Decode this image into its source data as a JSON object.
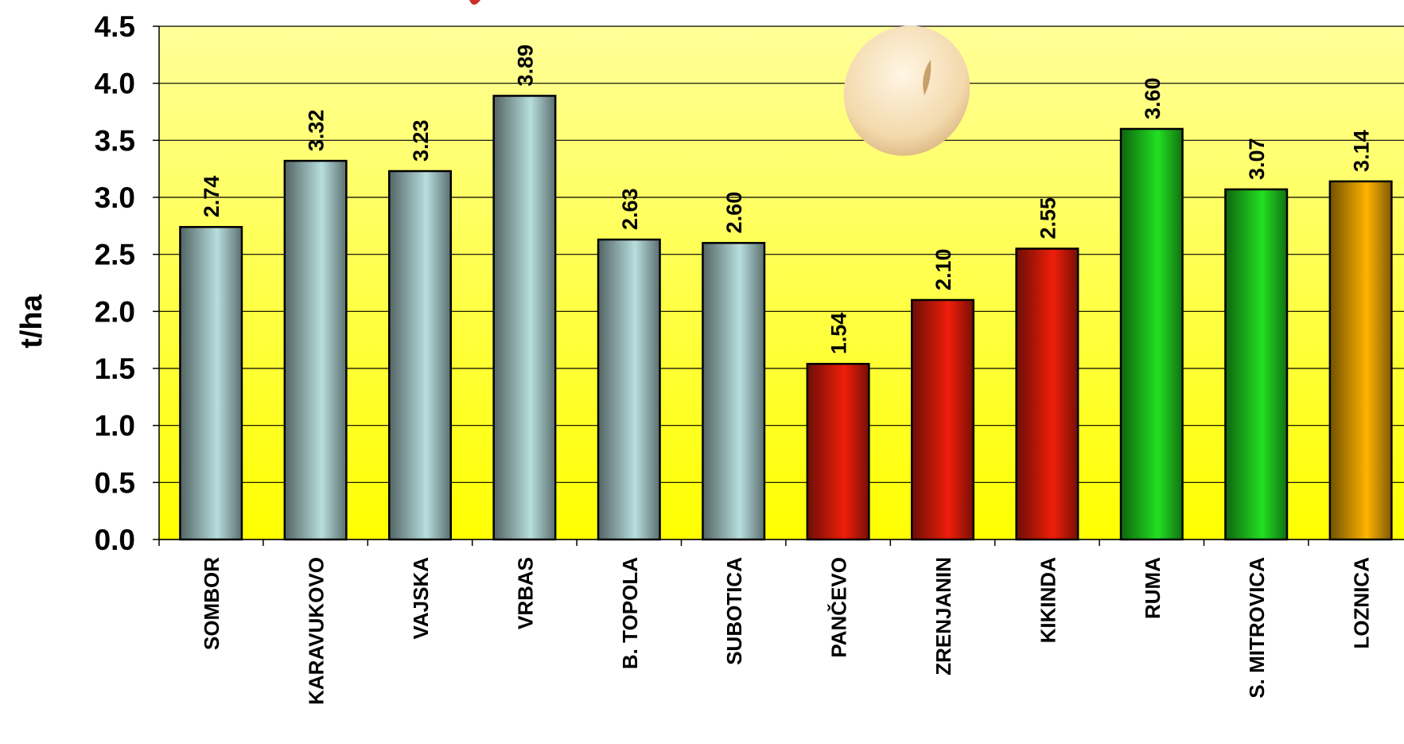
{
  "chart_data": {
    "type": "bar",
    "y_label": "t/ha",
    "categories": [
      "SOMBOR",
      "KARAVUKOVO",
      "VAJSKA",
      "VRBAS",
      "B. TOPOLA",
      "SUBOTICA",
      "PANČEVO",
      "ZRENJANIN",
      "KIKINDA",
      "RUMA",
      "S. MITROVICA",
      "LOZNICA"
    ],
    "values": [
      2.74,
      3.32,
      3.23,
      3.89,
      2.63,
      2.6,
      1.54,
      2.1,
      2.55,
      3.6,
      3.07,
      3.14
    ],
    "value_labels": [
      "2.74",
      "3.32",
      "3.23",
      "3.89",
      "2.63",
      "2.60",
      "1.54",
      "2.10",
      "2.55",
      "3.60",
      "3.07",
      "3.14"
    ],
    "colors": [
      "#b8dede",
      "#b8dede",
      "#b8dede",
      "#b8dede",
      "#b8dede",
      "#b8dede",
      "#f01e0a",
      "#f01e0a",
      "#f01e0a",
      "#22e022",
      "#22e022",
      "#ffb400"
    ],
    "ylim": [
      0,
      4.5
    ],
    "yticks": [
      {
        "value": 0,
        "label": "0.0"
      },
      0.5,
      {
        "value": 1,
        "label": "1.0"
      },
      1.5,
      {
        "value": 2,
        "label": "2.0"
      },
      2.5,
      {
        "value": 3,
        "label": "3.0"
      },
      3.5,
      {
        "value": 4,
        "label": "4.0"
      },
      4.5
    ],
    "grid": true
  }
}
